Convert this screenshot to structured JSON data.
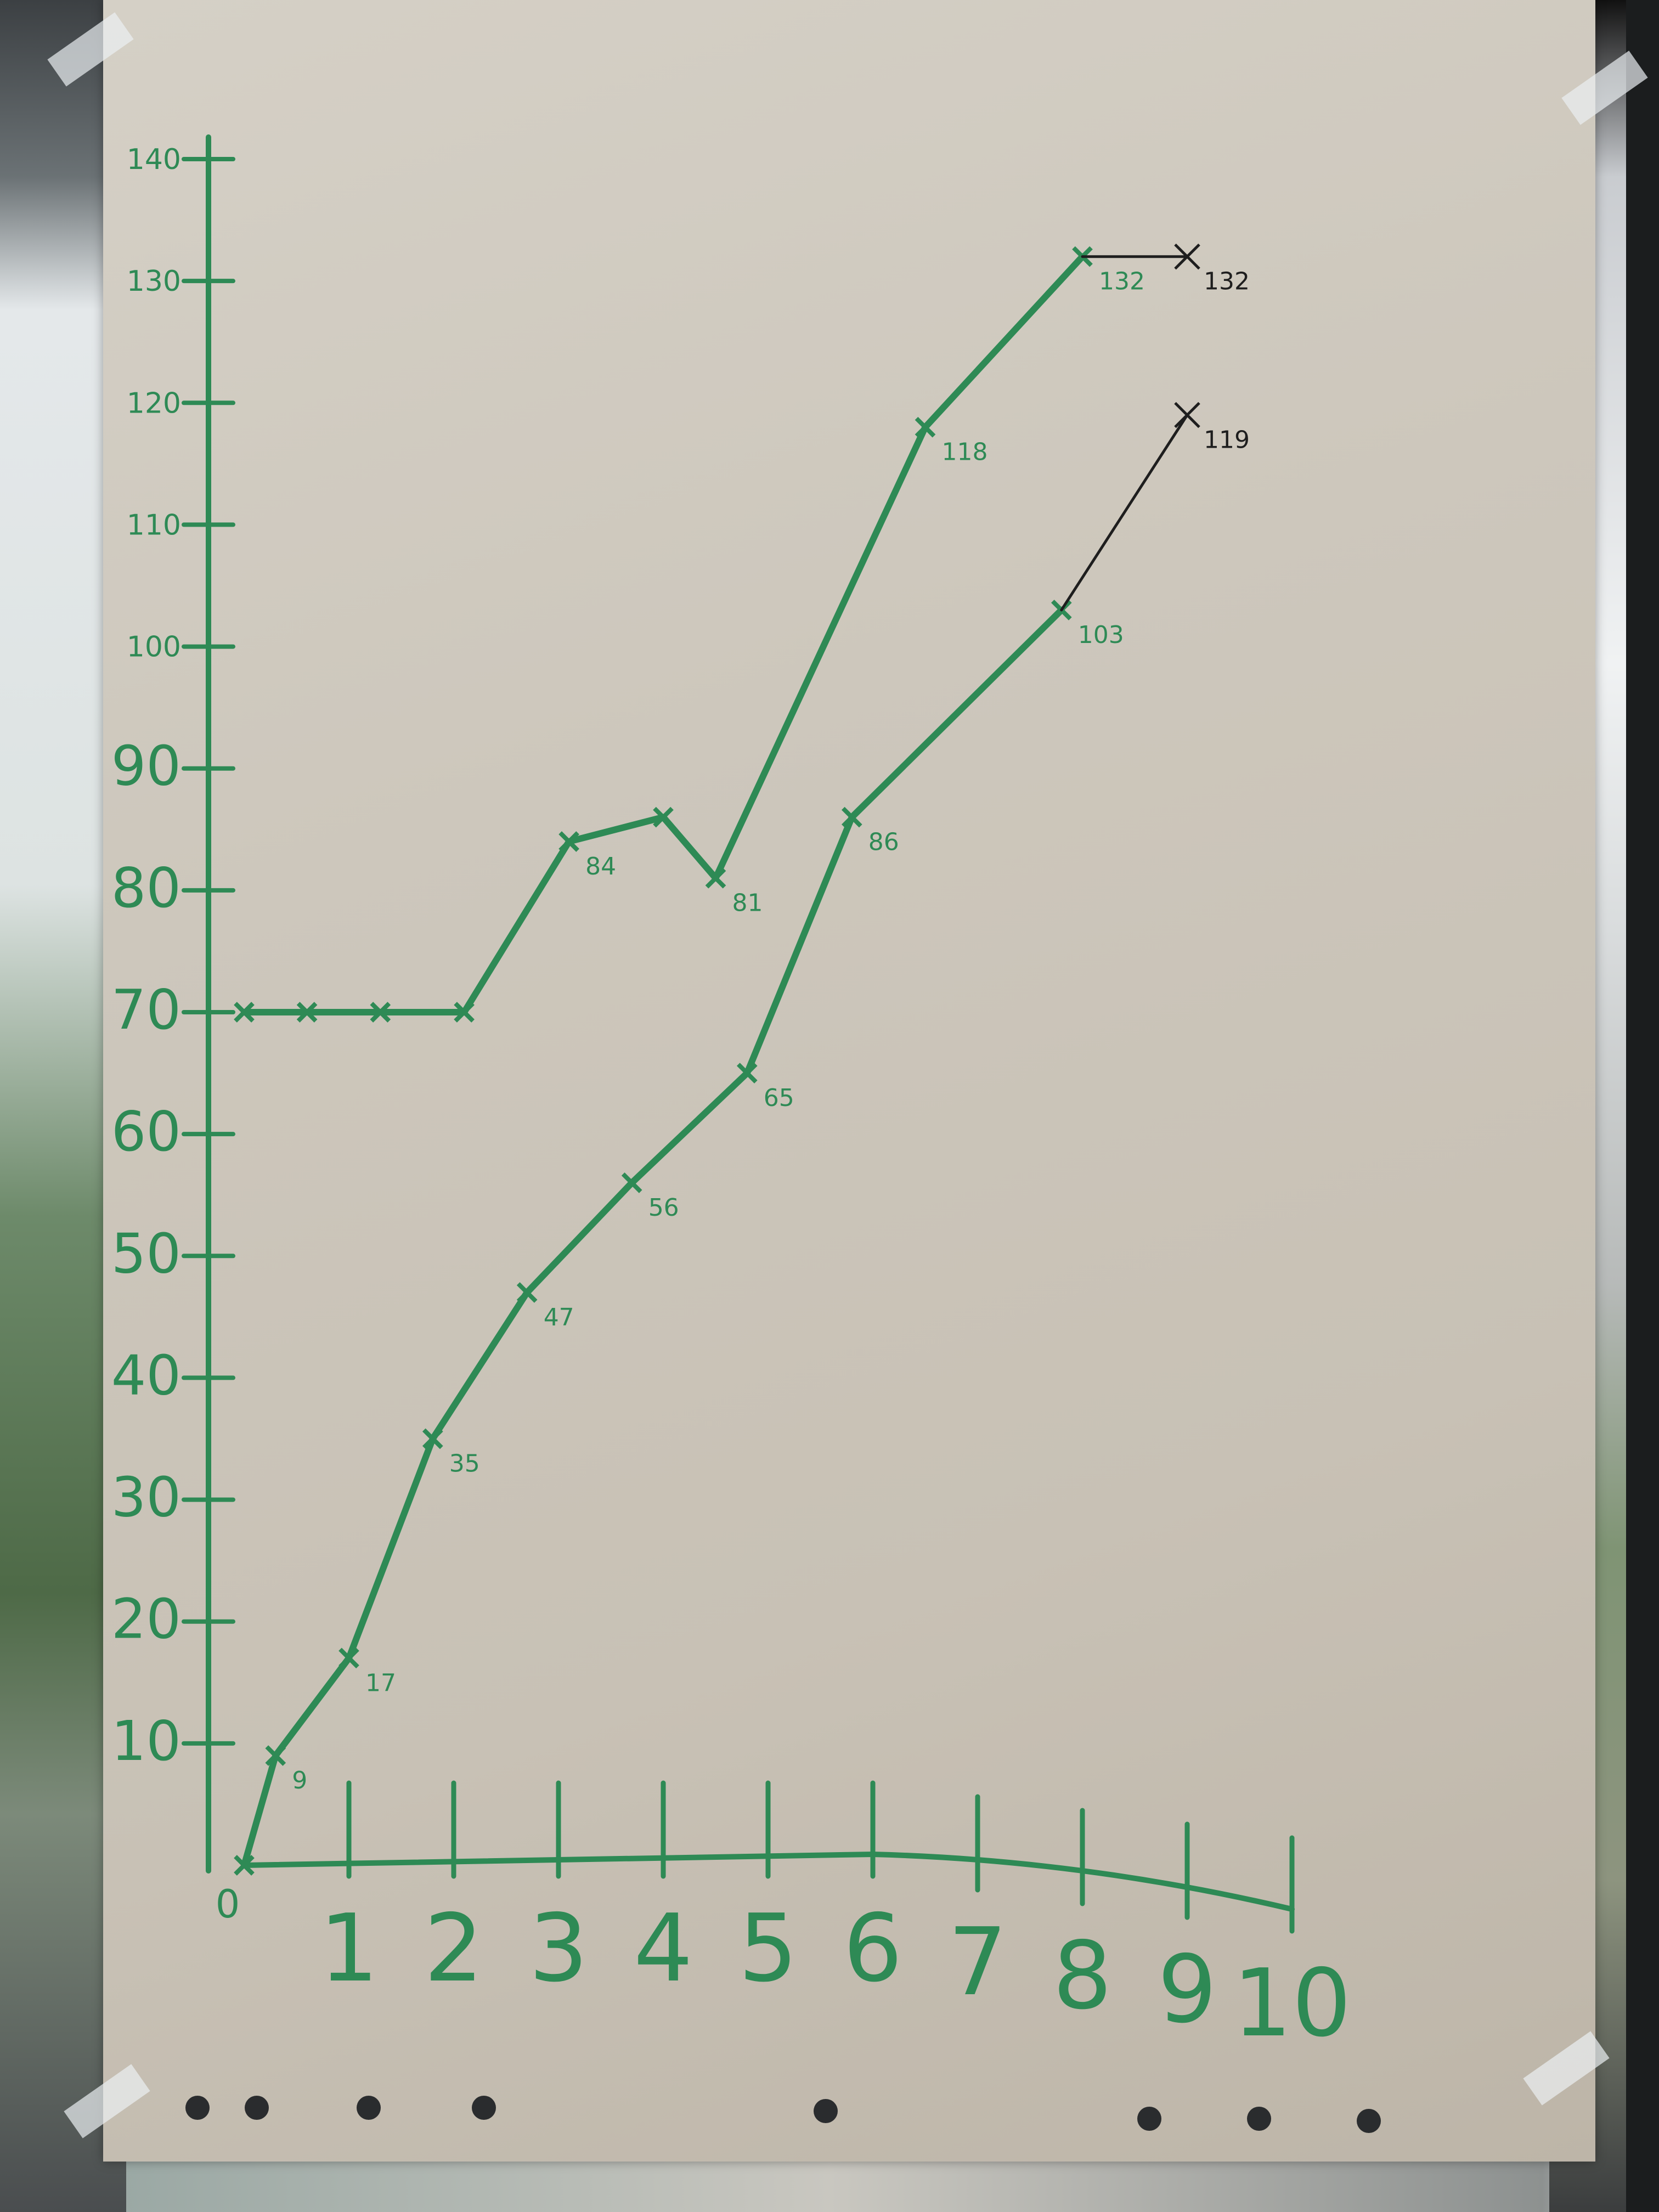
{
  "chart_data": {
    "type": "line",
    "title": "",
    "xlabel": "",
    "ylabel": "",
    "xlim": [
      0,
      10
    ],
    "ylim": [
      0,
      145
    ],
    "x_ticks": [
      "0",
      "1",
      "2",
      "3",
      "4",
      "5",
      "6",
      "7",
      "8",
      "9",
      "10"
    ],
    "y_ticks": [
      "10",
      "20",
      "30",
      "40",
      "50",
      "60",
      "70",
      "80",
      "90",
      "100",
      "110",
      "120",
      "130",
      "140"
    ],
    "grid": false,
    "legend": "none",
    "series": [
      {
        "color": "#2e8a55",
        "points": [
          {
            "x": 0,
            "y": 70
          },
          {
            "x": 0.6,
            "y": 70
          },
          {
            "x": 1.3,
            "y": 70
          },
          {
            "x": 2.1,
            "y": 70
          },
          {
            "x": 3.1,
            "y": 84
          },
          {
            "x": 4.0,
            "y": 86
          },
          {
            "x": 4.5,
            "y": 81
          },
          {
            "x": 6.5,
            "y": 118
          },
          {
            "x": 8.0,
            "y": 132
          }
        ],
        "labels": [
          "",
          "",
          "",
          "",
          "84",
          "",
          "81",
          "118",
          "132"
        ]
      },
      {
        "color": "#1e1e1e",
        "points": [
          {
            "x": 8.0,
            "y": 132
          },
          {
            "x": 9.0,
            "y": 132
          }
        ],
        "labels": [
          "",
          "132"
        ]
      },
      {
        "color": "#2e8a55",
        "points": [
          {
            "x": 0,
            "y": 0
          },
          {
            "x": 0.3,
            "y": 9
          },
          {
            "x": 1.0,
            "y": 17
          },
          {
            "x": 1.8,
            "y": 35
          },
          {
            "x": 2.7,
            "y": 47
          },
          {
            "x": 3.7,
            "y": 56
          },
          {
            "x": 4.8,
            "y": 65
          },
          {
            "x": 5.8,
            "y": 86
          },
          {
            "x": 7.8,
            "y": 103
          }
        ],
        "labels": [
          "",
          "9",
          "17",
          "35",
          "47",
          "56",
          "65",
          "86",
          "103"
        ]
      },
      {
        "color": "#1e1e1e",
        "points": [
          {
            "x": 7.8,
            "y": 103
          },
          {
            "x": 9.0,
            "y": 119
          }
        ],
        "labels": [
          "",
          "119"
        ]
      }
    ]
  }
}
